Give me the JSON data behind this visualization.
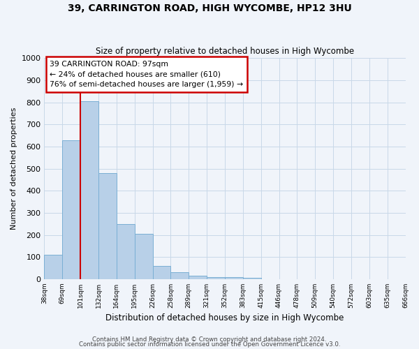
{
  "title": "39, CARRINGTON ROAD, HIGH WYCOMBE, HP12 3HU",
  "subtitle": "Size of property relative to detached houses in High Wycombe",
  "xlabel": "Distribution of detached houses by size in High Wycombe",
  "ylabel": "Number of detached properties",
  "bar_heights": [
    110,
    630,
    805,
    480,
    250,
    205,
    60,
    30,
    15,
    10,
    8,
    5,
    0,
    0,
    0,
    0,
    0,
    0,
    0,
    0
  ],
  "bin_labels": [
    "38sqm",
    "69sqm",
    "101sqm",
    "132sqm",
    "164sqm",
    "195sqm",
    "226sqm",
    "258sqm",
    "289sqm",
    "321sqm",
    "352sqm",
    "383sqm",
    "415sqm",
    "446sqm",
    "478sqm",
    "509sqm",
    "540sqm",
    "572sqm",
    "603sqm",
    "635sqm",
    "666sqm"
  ],
  "bar_color": "#b8d0e8",
  "bar_edge_color": "#7aafd4",
  "grid_color": "#c8d8e8",
  "background_color": "#f0f4fa",
  "vline_color": "#cc0000",
  "annotation_line1": "39 CARRINGTON ROAD: 97sqm",
  "annotation_line2": "← 24% of detached houses are smaller (610)",
  "annotation_line3": "76% of semi-detached houses are larger (1,959) →",
  "annotation_box_color": "#cc0000",
  "ylim": [
    0,
    1000
  ],
  "yticks": [
    0,
    100,
    200,
    300,
    400,
    500,
    600,
    700,
    800,
    900,
    1000
  ],
  "footer1": "Contains HM Land Registry data © Crown copyright and database right 2024.",
  "footer2": "Contains public sector information licensed under the Open Government Licence v3.0."
}
